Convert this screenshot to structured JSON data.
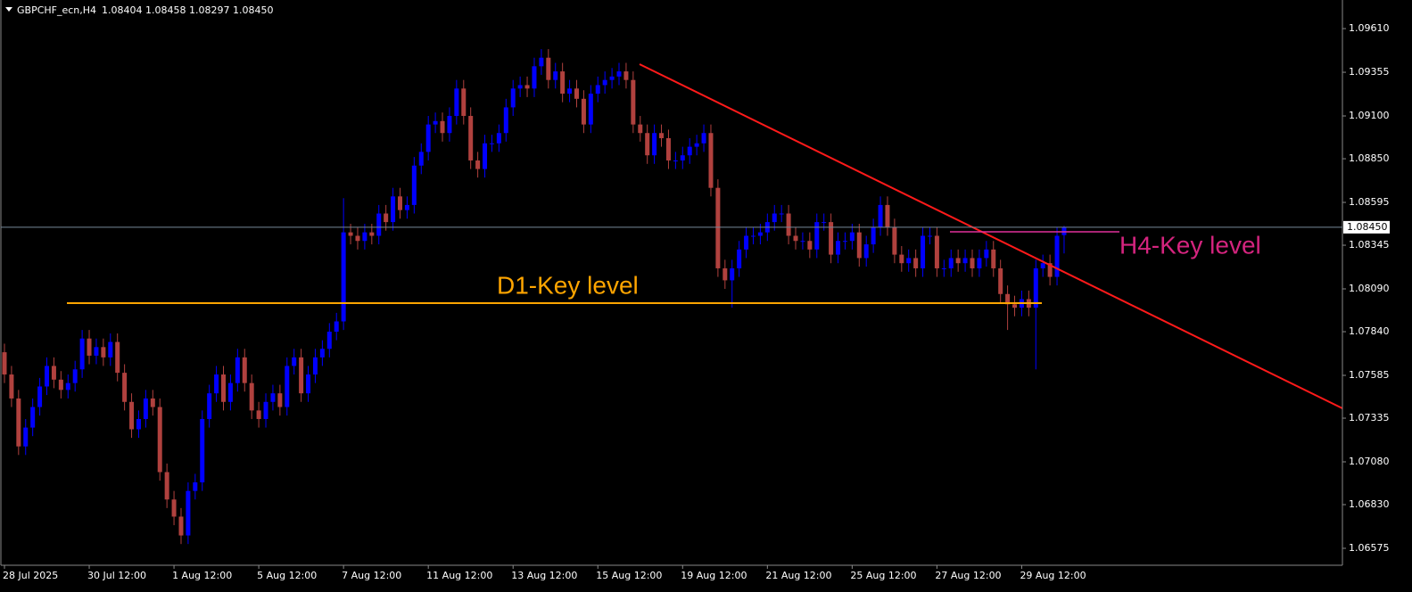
{
  "chart_data": {
    "type": "candlestick",
    "header_symbol": "GBPCHF_ecn,H4",
    "header_quote": "1.08404 1.08458 1.08297 1.08450",
    "up_color": "#0000ff",
    "down_color": "#b0413e",
    "xlim": [
      -0.63,
      189.4
    ],
    "ylim": [
      1.06476,
      1.09777
    ],
    "yticks": [
      {
        "value": 1.0961,
        "label": "1.09610"
      },
      1.09355,
      {
        "value": 1.091,
        "label": "1.09100"
      },
      {
        "value": 1.0885,
        "label": "1.08850"
      },
      1.08595,
      1.08345,
      {
        "value": 1.0809,
        "label": "1.08090"
      },
      {
        "value": 1.0784,
        "label": "1.07840"
      },
      1.07585,
      1.07335,
      {
        "value": 1.0708,
        "label": "1.07080"
      },
      {
        "value": 1.0683,
        "label": "1.06830"
      },
      1.06575
    ],
    "xticks": [
      {
        "value": 0,
        "label": "28 Jul 2025"
      },
      {
        "value": 12,
        "label": "30 Jul 12:00"
      },
      {
        "value": 24,
        "label": "1 Aug 12:00"
      },
      {
        "value": 36,
        "label": "5 Aug 12:00"
      },
      {
        "value": 48,
        "label": "7 Aug 12:00"
      },
      {
        "value": 60,
        "label": "11 Aug 12:00"
      },
      {
        "value": 72,
        "label": "13 Aug 12:00"
      },
      {
        "value": 84,
        "label": "15 Aug 12:00"
      },
      {
        "value": 96,
        "label": "19 Aug 12:00"
      },
      {
        "value": 108,
        "label": "21 Aug 12:00"
      },
      {
        "value": 120,
        "label": "25 Aug 12:00"
      },
      {
        "value": 132,
        "label": "27 Aug 12:00"
      },
      {
        "value": 144,
        "label": "29 Aug 12:00"
      }
    ],
    "current_price": {
      "value": 1.0845,
      "label": "1.08450"
    },
    "annotations": [
      "D1-Key level",
      "H4-Key level"
    ],
    "open": [
      1.0772,
      1.0759,
      1.0745,
      1.0717,
      1.0728,
      1.074,
      1.0752,
      1.0764,
      1.0756,
      1.075,
      1.0754,
      1.0762,
      1.078,
      1.077,
      1.0775,
      1.0769,
      1.0778,
      1.076,
      1.0743,
      1.0727,
      1.0733,
      1.0745,
      1.074,
      1.0702,
      1.0686,
      1.0676,
      1.0665,
      1.0691,
      1.0696,
      1.0733,
      1.0748,
      1.0759,
      1.0743,
      1.0754,
      1.0769,
      1.0754,
      1.0738,
      1.0733,
      1.0743,
      1.0748,
      1.074,
      1.0764,
      1.0769,
      1.0748,
      1.0759,
      1.0769,
      1.0774,
      1.0784,
      1.079,
      1.0842,
      1.084,
      1.0837,
      1.0842,
      1.084,
      1.0853,
      1.0848,
      1.0863,
      1.0855,
      1.0858,
      1.0881,
      1.0889,
      1.0905,
      1.0907,
      1.09,
      1.091,
      1.0926,
      1.091,
      1.0884,
      1.0879,
      1.0894,
      1.0894,
      1.09,
      1.0915,
      1.0926,
      1.0928,
      1.0926,
      1.0939,
      1.0944,
      1.0931,
      1.0936,
      1.0923,
      1.0926,
      1.092,
      1.0905,
      1.0923,
      1.0928,
      1.0931,
      1.0933,
      1.0936,
      1.0931,
      1.0905,
      1.09,
      1.0887,
      1.09,
      1.0897,
      1.0884,
      1.0884,
      1.0887,
      1.0892,
      1.0894,
      1.09,
      1.0868,
      1.0821,
      1.0814,
      1.0821,
      1.0832,
      1.084,
      1.084,
      1.0842,
      1.0848,
      1.0853,
      1.0853,
      1.084,
      1.0837,
      1.0837,
      1.0832,
      1.0848,
      1.0848,
      1.0829,
      1.0837,
      1.0837,
      1.0842,
      1.0827,
      1.0835,
      1.0845,
      1.0858,
      1.0845,
      1.0829,
      1.0824,
      1.0827,
      1.0821,
      1.084,
      1.084,
      1.0821,
      1.0821,
      1.0827,
      1.0824,
      1.0827,
      1.0821,
      1.0827,
      1.0832,
      1.0821,
      1.0806,
      1.08,
      1.0798,
      1.0803,
      1.0798,
      1.0821,
      1.0824,
      1.0816,
      1.08404
    ],
    "high": [
      1.0777,
      1.0764,
      1.075,
      1.0733,
      1.0745,
      1.0757,
      1.0769,
      1.0769,
      1.0761,
      1.0759,
      1.0767,
      1.0785,
      1.0785,
      1.078,
      1.078,
      1.0783,
      1.0783,
      1.0765,
      1.0748,
      1.0738,
      1.075,
      1.075,
      1.0745,
      1.0707,
      1.0691,
      1.0681,
      1.0696,
      1.0701,
      1.0738,
      1.0753,
      1.0764,
      1.0764,
      1.0759,
      1.0774,
      1.0774,
      1.0759,
      1.0743,
      1.0748,
      1.0753,
      1.0753,
      1.0769,
      1.0774,
      1.0774,
      1.0764,
      1.0774,
      1.0779,
      1.0789,
      1.0795,
      1.0862,
      1.0847,
      1.0845,
      1.0847,
      1.0847,
      1.0858,
      1.0858,
      1.0868,
      1.0868,
      1.0863,
      1.0886,
      1.0894,
      1.091,
      1.0912,
      1.0912,
      1.0915,
      1.0931,
      1.0931,
      1.0915,
      1.0889,
      1.0899,
      1.0899,
      1.0905,
      1.092,
      1.0931,
      1.0933,
      1.0933,
      1.0944,
      1.0949,
      1.0949,
      1.0941,
      1.0941,
      1.0931,
      1.0931,
      1.0925,
      1.0928,
      1.0933,
      1.0936,
      1.0938,
      1.0941,
      1.0941,
      1.0936,
      1.091,
      1.0905,
      1.0905,
      1.0905,
      1.0902,
      1.0889,
      1.0892,
      1.0897,
      1.0899,
      1.0905,
      1.0905,
      1.0873,
      1.0826,
      1.0826,
      1.0837,
      1.0845,
      1.0845,
      1.0847,
      1.0853,
      1.0858,
      1.0858,
      1.0858,
      1.0845,
      1.0842,
      1.0842,
      1.0853,
      1.0853,
      1.0853,
      1.0842,
      1.0842,
      1.0847,
      1.0847,
      1.084,
      1.085,
      1.0863,
      1.0863,
      1.085,
      1.0834,
      1.0832,
      1.0832,
      1.0845,
      1.0845,
      1.0845,
      1.0826,
      1.0832,
      1.0832,
      1.0832,
      1.0832,
      1.0832,
      1.0837,
      1.0837,
      1.0826,
      1.0811,
      1.0805,
      1.0808,
      1.0808,
      1.0826,
      1.0829,
      1.0829,
      1.0845,
      1.08458
    ],
    "low": [
      1.0754,
      1.074,
      1.0712,
      1.0712,
      1.0723,
      1.0735,
      1.0747,
      1.0751,
      1.0745,
      1.0745,
      1.0749,
      1.0757,
      1.0765,
      1.0765,
      1.0764,
      1.0764,
      1.0755,
      1.0738,
      1.0722,
      1.0722,
      1.0728,
      1.0735,
      1.0697,
      1.0681,
      1.0671,
      1.066,
      1.066,
      1.0686,
      1.0691,
      1.0728,
      1.0743,
      1.0738,
      1.0738,
      1.0749,
      1.0749,
      1.0733,
      1.0728,
      1.0728,
      1.0738,
      1.0735,
      1.0735,
      1.0759,
      1.0743,
      1.0743,
      1.0754,
      1.0764,
      1.0769,
      1.0779,
      1.0785,
      1.0835,
      1.0832,
      1.0832,
      1.0835,
      1.0835,
      1.0843,
      1.0843,
      1.085,
      1.085,
      1.0853,
      1.0876,
      1.0884,
      1.09,
      1.0895,
      1.0895,
      1.0905,
      1.0905,
      1.0879,
      1.0874,
      1.0874,
      1.0889,
      1.0889,
      1.0895,
      1.091,
      1.0921,
      1.0921,
      1.0921,
      1.0934,
      1.0926,
      1.0926,
      1.0918,
      1.0918,
      1.0915,
      1.09,
      1.09,
      1.0918,
      1.0923,
      1.0926,
      1.0928,
      1.0926,
      1.09,
      1.0895,
      1.0882,
      1.0882,
      1.0892,
      1.0879,
      1.0879,
      1.0879,
      1.0882,
      1.0887,
      1.0889,
      1.0863,
      1.0816,
      1.0809,
      1.0798,
      1.0816,
      1.0827,
      1.0835,
      1.0835,
      1.0837,
      1.0843,
      1.0848,
      1.0835,
      1.0832,
      1.0832,
      1.0827,
      1.0827,
      1.0843,
      1.0824,
      1.0824,
      1.0832,
      1.0832,
      1.0822,
      1.0822,
      1.083,
      1.084,
      1.084,
      1.0824,
      1.0819,
      1.0819,
      1.0816,
      1.0816,
      1.0835,
      1.0816,
      1.0816,
      1.0816,
      1.0819,
      1.0819,
      1.0816,
      1.0816,
      1.0822,
      1.0816,
      1.0801,
      1.0785,
      1.0793,
      1.0793,
      1.0793,
      1.0762,
      1.0816,
      1.0811,
      1.0811,
      1.08297
    ],
    "close": [
      1.0759,
      1.0745,
      1.0717,
      1.0728,
      1.074,
      1.0752,
      1.0764,
      1.0756,
      1.075,
      1.0754,
      1.0762,
      1.078,
      1.077,
      1.0775,
      1.0769,
      1.0778,
      1.076,
      1.0743,
      1.0727,
      1.0733,
      1.0745,
      1.074,
      1.0702,
      1.0686,
      1.0676,
      1.0665,
      1.0691,
      1.0696,
      1.0733,
      1.0748,
      1.0759,
      1.0743,
      1.0754,
      1.0769,
      1.0754,
      1.0738,
      1.0733,
      1.0743,
      1.0748,
      1.074,
      1.0764,
      1.0769,
      1.0748,
      1.0759,
      1.0769,
      1.0774,
      1.0784,
      1.079,
      1.0842,
      1.084,
      1.0837,
      1.0842,
      1.084,
      1.0853,
      1.0848,
      1.0863,
      1.0855,
      1.0858,
      1.0881,
      1.0889,
      1.0905,
      1.0907,
      1.09,
      1.091,
      1.0926,
      1.091,
      1.0884,
      1.0879,
      1.0894,
      1.0894,
      1.09,
      1.0915,
      1.0926,
      1.0928,
      1.0926,
      1.0939,
      1.0944,
      1.0931,
      1.0936,
      1.0923,
      1.0926,
      1.092,
      1.0905,
      1.0923,
      1.0928,
      1.0931,
      1.0933,
      1.0936,
      1.0931,
      1.0905,
      1.09,
      1.0887,
      1.09,
      1.0897,
      1.0884,
      1.0884,
      1.0887,
      1.0892,
      1.0894,
      1.09,
      1.0868,
      1.0821,
      1.0814,
      1.0821,
      1.0832,
      1.084,
      1.084,
      1.0842,
      1.0848,
      1.0853,
      1.0853,
      1.084,
      1.0837,
      1.0837,
      1.0832,
      1.0848,
      1.0848,
      1.0829,
      1.0837,
      1.0837,
      1.0842,
      1.0827,
      1.0835,
      1.0845,
      1.0858,
      1.0845,
      1.0829,
      1.0824,
      1.0827,
      1.0821,
      1.084,
      1.084,
      1.0821,
      1.0821,
      1.0827,
      1.0824,
      1.0827,
      1.0821,
      1.0827,
      1.0832,
      1.0821,
      1.0806,
      1.08,
      1.0798,
      1.0803,
      1.0798,
      1.0821,
      1.0824,
      1.0816,
      1.084,
      1.0845
    ]
  }
}
